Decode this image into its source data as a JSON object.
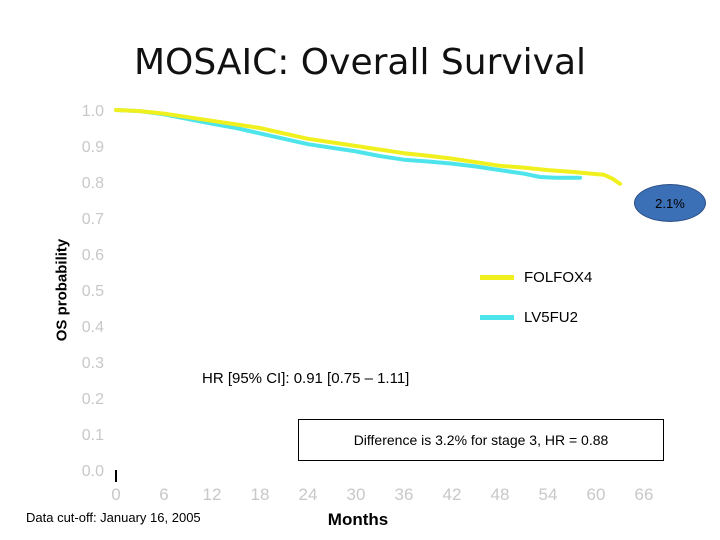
{
  "chart_data": {
    "type": "line",
    "title": "MOSAIC: Overall Survival",
    "xlabel": "Months",
    "ylabel": "OS probability",
    "xlim": [
      0,
      66
    ],
    "ylim": [
      0.0,
      1.0
    ],
    "x_ticks": [
      0,
      6,
      12,
      18,
      24,
      30,
      36,
      42,
      48,
      54,
      60,
      66
    ],
    "y_ticks": [
      0.0,
      0.1,
      0.2,
      0.3,
      0.4,
      0.5,
      0.6,
      0.7,
      0.8,
      0.9,
      1.0
    ],
    "y_tick_labels": [
      "0.0",
      "0.1",
      "0.2",
      "0.3",
      "0.4",
      "0.5",
      "0.6",
      "0.7",
      "0.8",
      "0.9",
      "1.0"
    ],
    "series": [
      {
        "name": "FOLFOX4",
        "color": "#f0f01e",
        "x": [
          0,
          3,
          6,
          9,
          12,
          15,
          18,
          21,
          24,
          27,
          30,
          33,
          36,
          39,
          42,
          45,
          48,
          51,
          54,
          57,
          59.5,
          61,
          62,
          63
        ],
        "y": [
          1.0,
          0.997,
          0.99,
          0.98,
          0.97,
          0.96,
          0.95,
          0.935,
          0.92,
          0.91,
          0.9,
          0.89,
          0.88,
          0.873,
          0.865,
          0.855,
          0.845,
          0.84,
          0.833,
          0.828,
          0.823,
          0.82,
          0.81,
          0.795
        ]
      },
      {
        "name": "LV5FU2",
        "color": "#4ee4ec",
        "x": [
          0,
          3,
          6,
          9,
          12,
          15,
          18,
          21,
          24,
          27,
          30,
          33,
          36,
          39,
          42,
          45,
          48,
          51,
          53,
          55,
          58
        ],
        "y": [
          1.0,
          0.997,
          0.988,
          0.975,
          0.962,
          0.95,
          0.935,
          0.92,
          0.905,
          0.895,
          0.885,
          0.872,
          0.862,
          0.857,
          0.851,
          0.843,
          0.833,
          0.823,
          0.814,
          0.812,
          0.812
        ]
      }
    ],
    "annotations": {
      "hr": "HR [95% CI]: 0.91 [0.75 – 1.11]",
      "difference": "Difference is 3.2% for stage 3, HR = 0.88",
      "bubble": "2.1%",
      "cutoff": "Data cut-off: January 16, 2005"
    },
    "legend_position": "right"
  }
}
